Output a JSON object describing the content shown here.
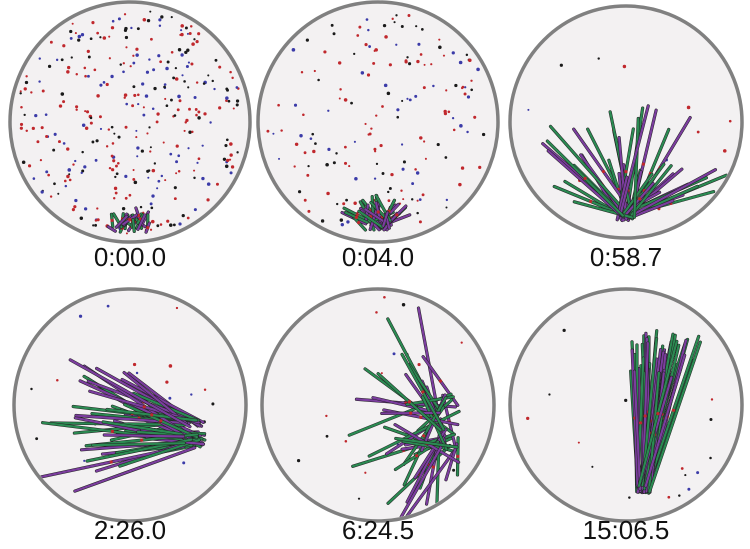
{
  "panels": [
    {
      "time": "0:00.0"
    },
    {
      "time": "0:04.0"
    },
    {
      "time": "0:58.7"
    },
    {
      "time": "2:26.0"
    },
    {
      "time": "6:24.5"
    },
    {
      "time": "15:06.5"
    }
  ]
}
